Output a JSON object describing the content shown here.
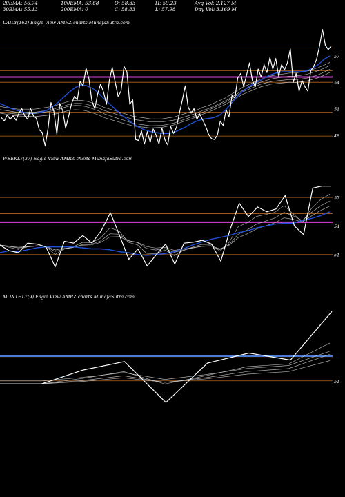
{
  "header": {
    "ema20": "20EMA: 56.74",
    "ema30": "30EMA: 55.13",
    "ema100": "100EMA: 53.68",
    "ema200": "200EMA: 0",
    "open": "O: 58.33",
    "close": "C: 58.83",
    "high": "H: 59.23",
    "low": "L: 57.98",
    "avg_vol": "Avg Vol: 2.127 M",
    "day_vol": "Day Vol: 3.169 M"
  },
  "colors": {
    "background": "#000000",
    "price_line": "#ffffff",
    "ema_fast": "#1f4fd8",
    "ema_slow": "#cccccc",
    "level_orange": "#b5651d",
    "level_magenta": "#e040e0",
    "level_blue": "#4a7bd8"
  },
  "chart_data": [
    {
      "type": "line",
      "label": "DAILY(162) Eagle View AMRZ charts MunafaSutra.com",
      "y_ticks": [
        "57",
        "54",
        "51",
        "48"
      ],
      "ylim": [
        46.5,
        60.2
      ],
      "levels": [
        57.9,
        55.3,
        54.0,
        50.6,
        47.9
      ],
      "magenta_level": 54.6,
      "price": [
        50.0,
        49.6,
        50.3,
        49.8,
        50.2,
        49.7,
        50.5,
        51.0,
        50.2,
        49.8,
        51.0,
        50.2,
        49.9,
        48.6,
        48.3,
        46.8,
        48.8,
        51.7,
        50.7,
        48.1,
        51.6,
        50.8,
        48.8,
        50.1,
        51.5,
        52.4,
        52.0,
        54.1,
        53.6,
        55.6,
        54.4,
        51.9,
        51.0,
        52.7,
        53.8,
        52.9,
        51.5,
        54.2,
        55.7,
        54.0,
        52.4,
        53.0,
        55.8,
        55.2,
        51.5,
        52.0,
        47.5,
        47.4,
        48.5,
        47.0,
        48.4,
        47.2,
        48.7,
        48.0,
        47.0,
        48.8,
        47.5,
        46.9,
        49.0,
        48.2,
        48.9,
        50.5,
        52.0,
        53.6,
        51.2,
        50.5,
        51.0,
        49.8,
        50.4,
        49.7,
        49.0,
        48.1,
        47.6,
        47.5,
        48.0,
        49.6,
        49.1,
        50.9,
        50.1,
        52.5,
        52.2,
        54.5,
        55.0,
        53.5,
        54.8,
        56.2,
        54.2,
        53.5,
        55.5,
        54.6,
        56.0,
        55.1,
        56.8,
        55.5,
        56.7,
        54.7,
        56.0,
        55.4,
        56.2,
        57.8,
        54.0,
        55.0,
        53.0,
        54.2,
        53.5,
        53.0,
        55.3,
        55.8,
        56.6,
        58.1,
        60.0,
        58.2,
        57.7,
        58.1
      ],
      "ema_fast": [
        51.6,
        51.3,
        51.0,
        50.8,
        50.6,
        50.5,
        50.5,
        50.6,
        50.8,
        51.2,
        51.7,
        52.3,
        52.9,
        53.4,
        53.7,
        53.6,
        53.3,
        52.8,
        52.1,
        51.5,
        50.9,
        50.3,
        49.8,
        49.3,
        48.9,
        48.6,
        48.4,
        48.3,
        48.2,
        48.2,
        48.3,
        48.6,
        48.9,
        49.3,
        49.6,
        49.8,
        49.9,
        50.0,
        50.3,
        50.9,
        51.6,
        52.4,
        53.0,
        53.5,
        53.9,
        54.2,
        54.6,
        54.9,
        55.1,
        55.2,
        55.2,
        55.2,
        55.2,
        55.3,
        55.6,
        56.0,
        56.6,
        57.0
      ],
      "ema_slow": [
        50.9,
        50.8,
        50.7,
        50.6,
        50.6,
        50.6,
        50.6,
        50.7,
        50.8,
        50.9,
        51.1,
        51.3,
        51.5,
        51.6,
        51.6,
        51.5,
        51.3,
        51.1,
        50.8,
        50.6,
        50.4,
        50.2,
        50.0,
        49.8,
        49.7,
        49.6,
        49.5,
        49.5,
        49.5,
        49.6,
        49.7,
        49.9,
        50.1,
        50.3,
        50.5,
        50.8,
        51.0,
        51.3,
        51.6,
        51.9,
        52.3,
        52.7,
        53.1,
        53.4,
        53.7,
        54.0,
        54.2,
        54.4,
        54.5,
        54.6,
        54.7,
        54.7,
        54.8,
        54.9,
        55.1,
        55.3,
        55.6,
        55.9
      ]
    },
    {
      "type": "line",
      "label": "WEEKLY(37) Eagle View AMRZ charts MunafaSutra.com",
      "y_ticks": [
        "57",
        "54",
        "51"
      ],
      "ylim": [
        48.0,
        60.5
      ],
      "levels": [
        57.0,
        55.3,
        54.0,
        51.0
      ],
      "magenta_level": 54.4,
      "price": [
        52.0,
        51.4,
        51.2,
        52.2,
        52.1,
        51.8,
        49.7,
        52.4,
        52.2,
        53.0,
        52.2,
        53.5,
        55.4,
        53.0,
        50.5,
        51.6,
        49.8,
        51.0,
        52.1,
        50.0,
        52.2,
        52.3,
        52.5,
        52.1,
        50.3,
        53.6,
        56.4,
        55.0,
        56.0,
        55.5,
        55.8,
        57.2,
        54.0,
        53.1,
        58.0,
        58.2,
        58.2
      ],
      "ema_fast": [
        51.2,
        51.4,
        51.3,
        51.5,
        51.7,
        51.8,
        51.8,
        51.8,
        51.8,
        51.7,
        51.6,
        51.6,
        51.5,
        51.3,
        51.2,
        51.0,
        50.9,
        51.0,
        51.1,
        51.3,
        51.6,
        52.0,
        52.3,
        52.6,
        52.8,
        53.0,
        53.3,
        53.5,
        53.8,
        54.0,
        54.2,
        54.3,
        54.3,
        54.6,
        54.8,
        55.1,
        55.5
      ]
    },
    {
      "type": "line",
      "label": "MONTHLY(9) Eagle View AMRZ charts MunafaSutra.com",
      "y_ticks": [
        "51"
      ],
      "ylim": [
        44.0,
        61.0
      ],
      "levels": [
        54.0,
        51.0
      ],
      "blue_level": 54.2,
      "price": [
        50.6,
        50.6,
        52.4,
        53.5,
        48.2,
        53.3,
        54.6,
        53.7,
        60.0
      ]
    }
  ]
}
